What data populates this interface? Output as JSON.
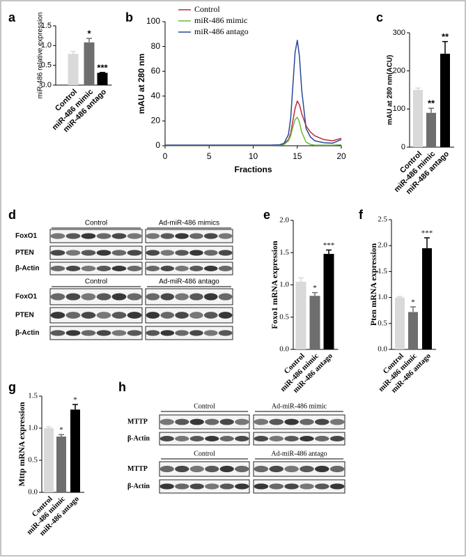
{
  "chart_data": [
    {
      "type": "bar",
      "panel": "a",
      "ylabel": "miR-486 relative expression",
      "categories": [
        "Control",
        "miR-486 mimic",
        "miR-486 antago"
      ],
      "values": [
        0.79,
        1.08,
        0.31
      ],
      "errors": [
        0.06,
        0.1,
        0.01
      ],
      "annotations": [
        null,
        "*",
        "***"
      ],
      "colors": [
        "#d9d9d9",
        "#6e6e6e",
        "#000000"
      ],
      "ylim": [
        0,
        1.5
      ],
      "yticks": [
        {
          "value": 0,
          "label": "0.0"
        },
        {
          "value": 0.5,
          "label": "0.5"
        },
        {
          "value": 1,
          "label": "1.0"
        },
        {
          "value": 1.5,
          "label": "1.5"
        }
      ]
    },
    {
      "type": "line",
      "panel": "b",
      "ylabel": "mAU at 280 nm",
      "xlabel": "Fractions",
      "x": [
        0,
        2,
        4,
        6,
        8,
        10,
        12,
        13,
        13.5,
        14,
        14.25,
        14.5,
        14.75,
        15,
        15.25,
        15.5,
        16,
        16.5,
        17,
        18,
        19,
        20
      ],
      "series": [
        {
          "name": "Control",
          "color": "#c0283a",
          "values": [
            0.5,
            0.5,
            0.5,
            0.5,
            0.5,
            0.5,
            0.5,
            0.7,
            1.5,
            5,
            10,
            20,
            30,
            36,
            33,
            26,
            16,
            11,
            8,
            5,
            4,
            6
          ]
        },
        {
          "name": "miR-486 mimic",
          "color": "#6fb83a",
          "values": [
            0.3,
            0.3,
            0.3,
            0.3,
            0.3,
            0.3,
            0.3,
            0.4,
            1,
            4,
            8,
            15,
            21,
            23,
            19,
            11,
            3,
            1,
            0.5,
            0.5,
            0.5,
            0.8
          ]
        },
        {
          "name": "miR-486 antago",
          "color": "#26479a",
          "values": [
            0.5,
            0.5,
            0.5,
            0.5,
            0.5,
            0.5,
            0.5,
            0.8,
            2,
            9,
            22,
            48,
            75,
            85,
            72,
            45,
            14,
            7,
            4,
            2.5,
            2,
            5
          ]
        }
      ],
      "xlim": [
        0,
        20
      ],
      "xticks": [
        0,
        5,
        10,
        15,
        20
      ],
      "ylim": [
        0,
        100
      ],
      "yticks": [
        0,
        20,
        40,
        60,
        80,
        100
      ]
    },
    {
      "type": "bar",
      "panel": "c",
      "ylabel": "mAU at 280 nm(ACU)",
      "categories": [
        "Control",
        "miR-486 mimic",
        "miR-486 antago"
      ],
      "values": [
        150,
        90,
        245
      ],
      "errors": [
        5,
        12,
        32
      ],
      "annotations": [
        null,
        "**",
        "**"
      ],
      "colors": [
        "#d9d9d9",
        "#6e6e6e",
        "#000000"
      ],
      "ylim": [
        0,
        300
      ],
      "yticks": [
        0,
        100,
        200,
        300
      ]
    },
    {
      "type": "bar",
      "panel": "e",
      "ylabel": "Foxo1 mRNA expression",
      "categories": [
        "Control",
        "miR-486 mimic",
        "miR-486 antago"
      ],
      "values": [
        1.05,
        0.83,
        1.48
      ],
      "errors": [
        0.06,
        0.05,
        0.06
      ],
      "annotations": [
        null,
        "*",
        "***"
      ],
      "colors": [
        "#d9d9d9",
        "#6e6e6e",
        "#000000"
      ],
      "ylim": [
        0,
        2
      ],
      "yticks": [
        {
          "value": 0,
          "label": "0.0"
        },
        {
          "value": 0.5,
          "label": "0.5"
        },
        {
          "value": 1,
          "label": "1.0"
        },
        {
          "value": 1.5,
          "label": "1.5"
        },
        {
          "value": 2,
          "label": "2.0"
        }
      ]
    },
    {
      "type": "bar",
      "panel": "f",
      "ylabel": "Pten mRNA expression",
      "categories": [
        "Control",
        "miR-486 mimic",
        "miR-486 antago"
      ],
      "values": [
        1.0,
        0.72,
        1.95
      ],
      "errors": [
        0.02,
        0.1,
        0.2
      ],
      "annotations": [
        null,
        "*",
        "***"
      ],
      "colors": [
        "#d9d9d9",
        "#6e6e6e",
        "#000000"
      ],
      "ylim": [
        0,
        2.5
      ],
      "yticks": [
        {
          "value": 0,
          "label": "0.0"
        },
        {
          "value": 0.5,
          "label": "0.5"
        },
        {
          "value": 1,
          "label": "1.0"
        },
        {
          "value": 1.5,
          "label": "1.5"
        },
        {
          "value": 2,
          "label": "2.0"
        },
        {
          "value": 2.5,
          "label": "2.5"
        }
      ]
    },
    {
      "type": "bar",
      "panel": "g",
      "ylabel": "Mttp mRNA expression",
      "categories": [
        "Control",
        "miR-486 mimic",
        "miR-486 antago"
      ],
      "values": [
        1.0,
        0.87,
        1.29
      ],
      "errors": [
        0.02,
        0.03,
        0.08
      ],
      "annotations": [
        null,
        "*",
        "*"
      ],
      "colors": [
        "#d9d9d9",
        "#6e6e6e",
        "#000000"
      ],
      "ylim": [
        0,
        1.5
      ],
      "yticks": [
        {
          "value": 0,
          "label": "0.0"
        },
        {
          "value": 0.5,
          "label": "0.5"
        },
        {
          "value": 1,
          "label": "1.0"
        },
        {
          "value": 1.5,
          "label": "1.5"
        }
      ]
    }
  ],
  "blots": [
    {
      "panel": "d",
      "blocks": [
        {
          "headers": [
            "Control",
            "Ad-miR-486 mimics"
          ],
          "rows": [
            "FoxO1",
            "PTEN",
            "β-Actin"
          ]
        },
        {
          "headers": [
            "Control",
            "Ad-miR-486 antago"
          ],
          "rows": [
            "FoxO1",
            "PTEN",
            "β-Actin"
          ]
        }
      ]
    },
    {
      "panel": "h",
      "blocks": [
        {
          "headers": [
            "Control",
            "Ad-miR-486 mimic"
          ],
          "rows": [
            "MTTP",
            "β-Actin"
          ]
        },
        {
          "headers": [
            "Control",
            "Ad-miR-486 antago"
          ],
          "rows": [
            "MTTP",
            "β-Actin"
          ]
        }
      ]
    }
  ]
}
